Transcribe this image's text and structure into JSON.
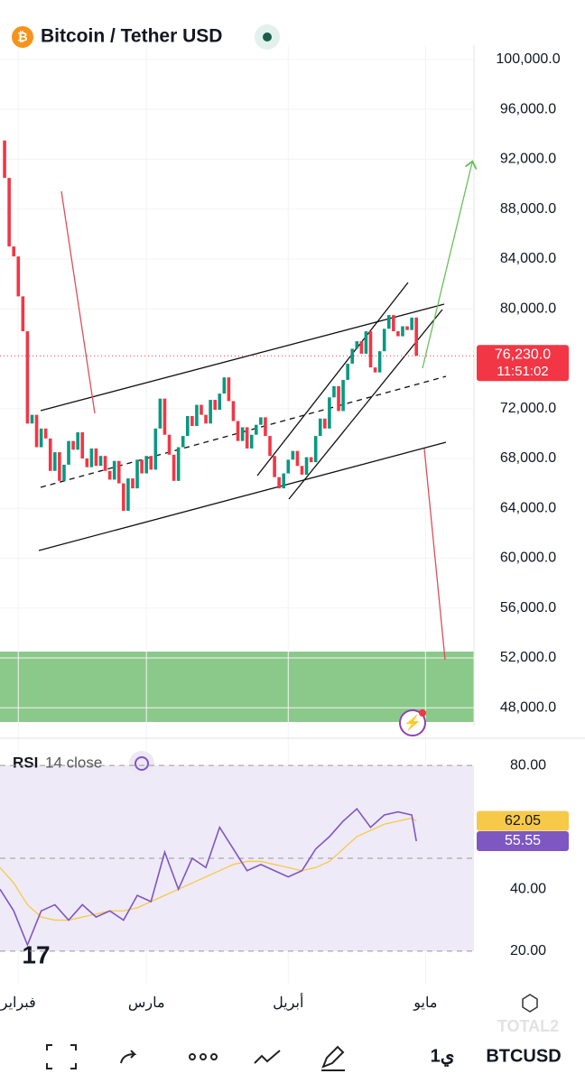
{
  "header": {
    "title": "Bitcoin / Tether USD"
  },
  "chart_data": [
    {
      "type": "candlestick",
      "x_start": -4,
      "values": [
        93500,
        90500,
        85000,
        84200,
        81000,
        78200,
        70800,
        71500,
        68900,
        70400,
        69600,
        67000,
        68500,
        66200,
        67500,
        69400,
        68700,
        70100,
        68000,
        67300,
        68800,
        67400,
        68200,
        67000,
        66300,
        67800,
        66000,
        63800,
        66400,
        65600,
        67900,
        66800,
        68200,
        67100,
        70400,
        72800,
        69900,
        68300,
        66200,
        68900,
        69800,
        71400,
        70600,
        72300,
        71500,
        70800,
        72700,
        71900,
        73200,
        74500,
        72600,
        71000,
        69400,
        70500,
        68800,
        69900,
        70700,
        71300,
        69800,
        68200,
        66500,
        65600,
        66800,
        67900,
        68600,
        67400,
        66700,
        68100,
        67700,
        69800,
        71200,
        70400,
        72900,
        73800,
        71800,
        74300,
        75600,
        76800,
        77400,
        76400,
        78200,
        75300,
        74900,
        76600,
        78400,
        79500,
        78200,
        77800,
        78600,
        78300,
        79300,
        76230
      ],
      "last_value_label": "76,230.0",
      "countdown": "11:51:02",
      "up_color": "#089981",
      "down_color": "#f23645",
      "xlim": [
        -4,
        99
      ],
      "xticks": [
        {
          "value": 0,
          "label": "فبراير"
        },
        {
          "value": 28,
          "label": "مارس"
        },
        {
          "value": 59,
          "label": "أبريل"
        },
        {
          "value": 89,
          "label": "مايو"
        }
      ],
      "ylim": [
        46500,
        101150
      ],
      "yticks": [
        {
          "value": 48000,
          "label": "48,000.0"
        },
        {
          "value": 52000,
          "label": "52,000.0"
        },
        {
          "value": 56000,
          "label": "56,000.0"
        },
        {
          "value": 60000,
          "label": "60,000.0"
        },
        {
          "value": 64000,
          "label": "64,000.0"
        },
        {
          "value": 68000,
          "label": "68,000.0"
        },
        {
          "value": 72000,
          "label": "72,000.0"
        },
        {
          "value": 80000,
          "label": "80,000.0"
        },
        {
          "value": 84000,
          "label": "84,000.0"
        },
        {
          "value": 88000,
          "label": "88,000.0"
        },
        {
          "value": 92000,
          "label": "92,000.0"
        },
        {
          "value": 96000,
          "label": "96,000.0"
        },
        {
          "value": 100000,
          "label": "100,000.0"
        }
      ]
    },
    {
      "type": "line",
      "title": "RSI",
      "subtitle": "14 close",
      "x": [
        -4,
        -1,
        2,
        5,
        8,
        11,
        14,
        17,
        20,
        23,
        26,
        29,
        32,
        35,
        38,
        41,
        44,
        47,
        50,
        53,
        56,
        59,
        62,
        65,
        68,
        71,
        74,
        77,
        80,
        83,
        86,
        87
      ],
      "series": [
        {
          "name": "RSI",
          "color": "#7e57c2",
          "values": [
            40,
            33,
            22,
            33,
            35,
            30,
            35,
            31,
            33,
            30,
            38,
            36,
            52,
            40,
            50,
            47,
            60,
            53,
            46,
            48,
            46,
            44,
            46,
            53,
            57,
            62,
            66,
            60,
            64,
            65,
            64,
            55.55
          ]
        },
        {
          "name": "RSI MA",
          "color": "#f7c948",
          "values": [
            47,
            42,
            35,
            31,
            30,
            30,
            31,
            32,
            33,
            33,
            34,
            36,
            38,
            40,
            42,
            44,
            46,
            48,
            49,
            49,
            48,
            47,
            46,
            47,
            49,
            53,
            57,
            59,
            61,
            62,
            63,
            62.05
          ]
        }
      ],
      "xlim": [
        -4,
        99
      ],
      "ylim": [
        15,
        85
      ],
      "yticks": [
        {
          "value": 20,
          "label": "20.00"
        },
        {
          "value": 40,
          "label": "40.00"
        },
        {
          "value": 80,
          "label": "80.00"
        }
      ],
      "bands": [
        80,
        50,
        20
      ]
    }
  ],
  "toolbar": {
    "interval": "1ي",
    "symbol": "BTCUSD",
    "watermark": "TOTAL2"
  }
}
